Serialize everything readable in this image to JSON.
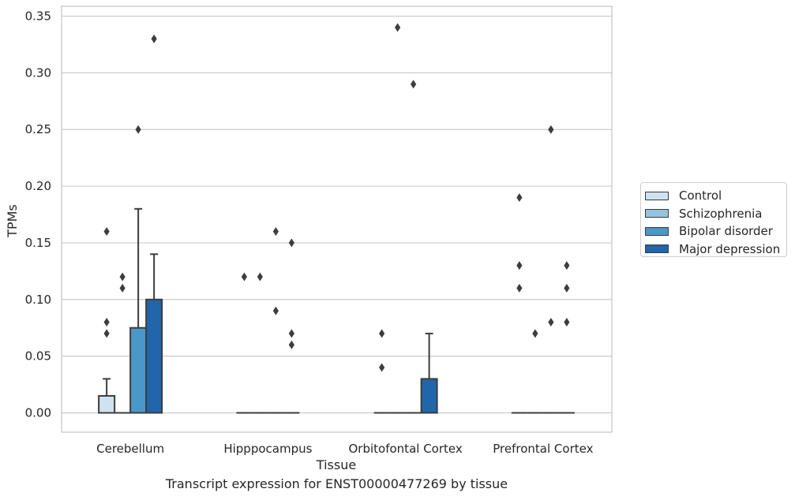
{
  "chart_data": {
    "type": "box",
    "caption": "Transcript expression for ENST00000477269 by tissue",
    "xlabel": "Tissue",
    "ylabel": "TPMs",
    "ylim": [
      -0.017,
      0.357
    ],
    "yticks": [
      0.0,
      0.05,
      0.1,
      0.15,
      0.2,
      0.25,
      0.3,
      0.35
    ],
    "ytick_labels": [
      "0.00",
      "0.05",
      "0.10",
      "0.15",
      "0.20",
      "0.25",
      "0.30",
      "0.35"
    ],
    "categories": [
      "Cerebellum",
      "Hipppocampus",
      "Orbitofontal Cortex",
      "Prefrontal Cortex"
    ],
    "grid": true,
    "legend_position": "right",
    "series": [
      {
        "name": "Control",
        "color": "#d0e1f2",
        "boxes": [
          {
            "q1": 0.0,
            "median": 0.0,
            "q3": 0.015,
            "whisker_low": 0.0,
            "whisker_high": 0.03,
            "outliers": [
              0.07,
              0.08,
              0.16
            ]
          },
          {
            "q1": 0.0,
            "median": 0.0,
            "q3": 0.0,
            "whisker_low": 0.0,
            "whisker_high": 0.0,
            "outliers": [
              0.12
            ]
          },
          {
            "q1": 0.0,
            "median": 0.0,
            "q3": 0.0,
            "whisker_low": 0.0,
            "whisker_high": 0.0,
            "outliers": [
              0.04,
              0.07
            ]
          },
          {
            "q1": 0.0,
            "median": 0.0,
            "q3": 0.0,
            "whisker_low": 0.0,
            "whisker_high": 0.0,
            "outliers": [
              0.11,
              0.13,
              0.19
            ]
          }
        ]
      },
      {
        "name": "Schizophrenia",
        "color": "#94c4df",
        "boxes": [
          {
            "q1": 0.0,
            "median": 0.0,
            "q3": 0.0,
            "whisker_low": 0.0,
            "whisker_high": 0.0,
            "outliers": [
              0.11,
              0.12
            ]
          },
          {
            "q1": 0.0,
            "median": 0.0,
            "q3": 0.0,
            "whisker_low": 0.0,
            "whisker_high": 0.0,
            "outliers": [
              0.12
            ]
          },
          {
            "q1": 0.0,
            "median": 0.0,
            "q3": 0.0,
            "whisker_low": 0.0,
            "whisker_high": 0.0,
            "outliers": [
              0.34
            ]
          },
          {
            "q1": 0.0,
            "median": 0.0,
            "q3": 0.0,
            "whisker_low": 0.0,
            "whisker_high": 0.0,
            "outliers": [
              0.07
            ]
          }
        ]
      },
      {
        "name": "Bipolar disorder",
        "color": "#4a98c9",
        "boxes": [
          {
            "q1": 0.0,
            "median": 0.0,
            "q3": 0.075,
            "whisker_low": 0.0,
            "whisker_high": 0.18,
            "outliers": [
              0.25
            ]
          },
          {
            "q1": 0.0,
            "median": 0.0,
            "q3": 0.0,
            "whisker_low": 0.0,
            "whisker_high": 0.0,
            "outliers": [
              0.09,
              0.16
            ]
          },
          {
            "q1": 0.0,
            "median": 0.0,
            "q3": 0.0,
            "whisker_low": 0.0,
            "whisker_high": 0.0,
            "outliers": [
              0.29
            ]
          },
          {
            "q1": 0.0,
            "median": 0.0,
            "q3": 0.0,
            "whisker_low": 0.0,
            "whisker_high": 0.0,
            "outliers": [
              0.08,
              0.25
            ]
          }
        ]
      },
      {
        "name": "Major depression",
        "color": "#2165ab",
        "boxes": [
          {
            "q1": 0.0,
            "median": 0.0,
            "q3": 0.1,
            "whisker_low": 0.0,
            "whisker_high": 0.14,
            "outliers": [
              0.33
            ]
          },
          {
            "q1": 0.0,
            "median": 0.0,
            "q3": 0.0,
            "whisker_low": 0.0,
            "whisker_high": 0.0,
            "outliers": [
              0.06,
              0.07,
              0.15
            ]
          },
          {
            "q1": 0.0,
            "median": 0.0,
            "q3": 0.03,
            "whisker_low": 0.0,
            "whisker_high": 0.07,
            "outliers": []
          },
          {
            "q1": 0.0,
            "median": 0.0,
            "q3": 0.0,
            "whisker_low": 0.0,
            "whisker_high": 0.0,
            "outliers": [
              0.08,
              0.11,
              0.13
            ]
          }
        ]
      }
    ]
  }
}
